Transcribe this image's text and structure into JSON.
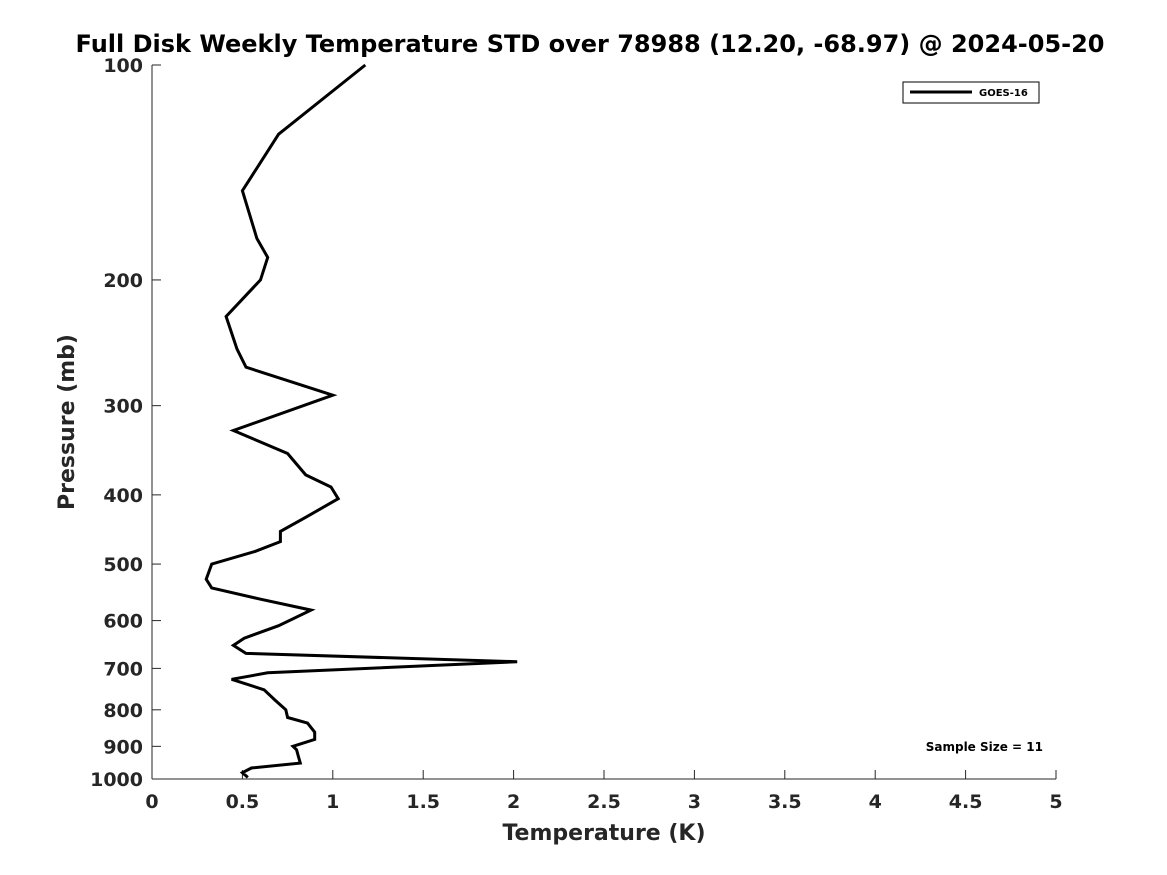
{
  "chart_data": {
    "type": "line",
    "title": "Full Disk Weekly Temperature STD over 78988 (12.20, -68.97) @ 2024-05-20",
    "xlabel": "Temperature (K)",
    "ylabel": "Pressure (mb)",
    "xlim": [
      0,
      5
    ],
    "ylim": [
      1000,
      100
    ],
    "y_scale": "log",
    "y_reversed": true,
    "xticks": [
      0,
      0.5,
      1,
      1.5,
      2,
      2.5,
      3,
      3.5,
      4,
      4.5,
      5
    ],
    "xtick_labels": [
      "0",
      "0.5",
      "1",
      "1.5",
      "2",
      "2.5",
      "3",
      "3.5",
      "4",
      "4.5",
      "5"
    ],
    "yticks": [
      100,
      200,
      300,
      400,
      500,
      600,
      700,
      800,
      900,
      1000
    ],
    "ytick_labels": [
      "100",
      "200",
      "300",
      "400",
      "500",
      "600",
      "700",
      "800",
      "900",
      "1000"
    ],
    "grid": false,
    "legend": {
      "position": "top-right",
      "entries": [
        "GOES-16"
      ]
    },
    "annotation": "Sample Size = 11",
    "series": [
      {
        "name": "GOES-16",
        "color": "#000000",
        "points": [
          [
            1.18,
            100
          ],
          [
            0.7,
            125
          ],
          [
            0.5,
            150
          ],
          [
            0.58,
            175
          ],
          [
            0.64,
            186
          ],
          [
            0.6,
            200
          ],
          [
            0.41,
            225
          ],
          [
            0.47,
            250
          ],
          [
            0.52,
            265
          ],
          [
            1.0,
            290
          ],
          [
            0.45,
            325
          ],
          [
            0.75,
            350
          ],
          [
            0.85,
            375
          ],
          [
            0.99,
            390
          ],
          [
            1.03,
            405
          ],
          [
            0.85,
            430
          ],
          [
            0.71,
            450
          ],
          [
            0.71,
            465
          ],
          [
            0.57,
            480
          ],
          [
            0.33,
            500
          ],
          [
            0.3,
            525
          ],
          [
            0.33,
            540
          ],
          [
            0.6,
            560
          ],
          [
            0.88,
            580
          ],
          [
            0.7,
            610
          ],
          [
            0.51,
            635
          ],
          [
            0.45,
            650
          ],
          [
            0.52,
            667
          ],
          [
            2.02,
            685
          ],
          [
            0.64,
            710
          ],
          [
            0.44,
            725
          ],
          [
            0.62,
            750
          ],
          [
            0.68,
            775
          ],
          [
            0.74,
            800
          ],
          [
            0.75,
            820
          ],
          [
            0.86,
            835
          ],
          [
            0.9,
            860
          ],
          [
            0.9,
            880
          ],
          [
            0.78,
            900
          ],
          [
            0.8,
            910
          ],
          [
            0.81,
            930
          ],
          [
            0.82,
            950
          ],
          [
            0.55,
            965
          ],
          [
            0.5,
            980
          ],
          [
            0.53,
            995
          ]
        ]
      }
    ]
  }
}
